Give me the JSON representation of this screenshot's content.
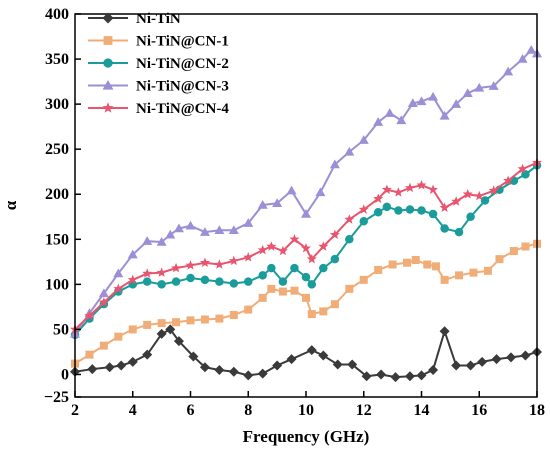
{
  "chart_data": {
    "type": "line",
    "xlabel": "Frequency (GHz)",
    "ylabel": "α",
    "xlim": [
      2,
      18
    ],
    "ylim": [
      -25,
      400
    ],
    "xticks": [
      2,
      4,
      6,
      8,
      10,
      12,
      14,
      16,
      18
    ],
    "yticks": [
      -25,
      0,
      50,
      100,
      150,
      200,
      250,
      300,
      350,
      400
    ],
    "legend_position": "top-left",
    "grid": false,
    "series": [
      {
        "name": "Ni-TiN",
        "color": "#3a3a3a",
        "marker": "diamond",
        "points": [
          [
            2.0,
            3
          ],
          [
            2.6,
            6
          ],
          [
            3.2,
            8
          ],
          [
            3.6,
            10
          ],
          [
            4.0,
            14
          ],
          [
            4.5,
            22
          ],
          [
            5.0,
            45
          ],
          [
            5.3,
            50
          ],
          [
            5.6,
            37
          ],
          [
            6.1,
            20
          ],
          [
            6.5,
            8
          ],
          [
            7.0,
            5
          ],
          [
            7.5,
            3
          ],
          [
            8.0,
            -1
          ],
          [
            8.5,
            1
          ],
          [
            9.0,
            10
          ],
          [
            9.5,
            17
          ],
          [
            10.2,
            27
          ],
          [
            10.6,
            21
          ],
          [
            11.1,
            11
          ],
          [
            11.6,
            11
          ],
          [
            12.1,
            -2
          ],
          [
            12.6,
            0
          ],
          [
            13.1,
            -3
          ],
          [
            13.6,
            -2
          ],
          [
            14.0,
            -1
          ],
          [
            14.4,
            5
          ],
          [
            14.8,
            48
          ],
          [
            15.2,
            10
          ],
          [
            15.7,
            10
          ],
          [
            16.1,
            14
          ],
          [
            16.6,
            17
          ],
          [
            17.1,
            19
          ],
          [
            17.6,
            21
          ],
          [
            18.0,
            25
          ]
        ]
      },
      {
        "name": "Ni-TiN@CN-1",
        "color": "#f0ad78",
        "marker": "square",
        "points": [
          [
            2.0,
            12
          ],
          [
            2.5,
            22
          ],
          [
            3.0,
            32
          ],
          [
            3.5,
            42
          ],
          [
            4.0,
            50
          ],
          [
            4.5,
            55
          ],
          [
            5.0,
            57
          ],
          [
            5.5,
            58
          ],
          [
            6.0,
            60
          ],
          [
            6.5,
            61
          ],
          [
            7.0,
            62
          ],
          [
            7.5,
            66
          ],
          [
            8.0,
            72
          ],
          [
            8.5,
            85
          ],
          [
            8.8,
            95
          ],
          [
            9.2,
            92
          ],
          [
            9.6,
            93
          ],
          [
            10.0,
            85
          ],
          [
            10.2,
            67
          ],
          [
            10.6,
            70
          ],
          [
            11.0,
            78
          ],
          [
            11.5,
            95
          ],
          [
            12.0,
            105
          ],
          [
            12.5,
            116
          ],
          [
            13.0,
            122
          ],
          [
            13.5,
            124
          ],
          [
            13.8,
            127
          ],
          [
            14.2,
            122
          ],
          [
            14.5,
            120
          ],
          [
            14.8,
            105
          ],
          [
            15.3,
            110
          ],
          [
            15.8,
            113
          ],
          [
            16.3,
            115
          ],
          [
            16.7,
            128
          ],
          [
            17.2,
            137
          ],
          [
            17.6,
            142
          ],
          [
            18.0,
            145
          ]
        ]
      },
      {
        "name": "Ni-TiN@CN-2",
        "color": "#1a9c9a",
        "marker": "circle",
        "points": [
          [
            2.0,
            44
          ],
          [
            2.5,
            62
          ],
          [
            3.0,
            78
          ],
          [
            3.5,
            92
          ],
          [
            4.0,
            100
          ],
          [
            4.5,
            103
          ],
          [
            5.0,
            100
          ],
          [
            5.5,
            103
          ],
          [
            6.0,
            107
          ],
          [
            6.5,
            105
          ],
          [
            7.0,
            103
          ],
          [
            7.5,
            101
          ],
          [
            8.0,
            103
          ],
          [
            8.5,
            110
          ],
          [
            8.8,
            118
          ],
          [
            9.2,
            103
          ],
          [
            9.6,
            118
          ],
          [
            10.0,
            108
          ],
          [
            10.2,
            100
          ],
          [
            10.6,
            118
          ],
          [
            11.0,
            128
          ],
          [
            11.5,
            150
          ],
          [
            12.0,
            170
          ],
          [
            12.5,
            180
          ],
          [
            12.8,
            186
          ],
          [
            13.2,
            182
          ],
          [
            13.6,
            183
          ],
          [
            14.0,
            182
          ],
          [
            14.4,
            178
          ],
          [
            14.8,
            162
          ],
          [
            15.3,
            158
          ],
          [
            15.7,
            175
          ],
          [
            16.2,
            193
          ],
          [
            16.7,
            205
          ],
          [
            17.2,
            215
          ],
          [
            17.6,
            222
          ],
          [
            18.0,
            232
          ]
        ]
      },
      {
        "name": "Ni-TiN@CN-3",
        "color": "#9b8fd6",
        "marker": "triangle",
        "points": [
          [
            2.0,
            45
          ],
          [
            2.5,
            68
          ],
          [
            3.0,
            90
          ],
          [
            3.5,
            112
          ],
          [
            4.0,
            133
          ],
          [
            4.5,
            148
          ],
          [
            5.0,
            147
          ],
          [
            5.3,
            155
          ],
          [
            5.6,
            162
          ],
          [
            6.0,
            165
          ],
          [
            6.5,
            158
          ],
          [
            7.0,
            160
          ],
          [
            7.5,
            160
          ],
          [
            8.0,
            168
          ],
          [
            8.5,
            188
          ],
          [
            9.0,
            190
          ],
          [
            9.5,
            204
          ],
          [
            10.0,
            178
          ],
          [
            10.5,
            202
          ],
          [
            11.0,
            233
          ],
          [
            11.5,
            247
          ],
          [
            12.0,
            260
          ],
          [
            12.5,
            280
          ],
          [
            12.9,
            290
          ],
          [
            13.3,
            282
          ],
          [
            13.7,
            301
          ],
          [
            14.0,
            303
          ],
          [
            14.4,
            308
          ],
          [
            14.8,
            287
          ],
          [
            15.2,
            300
          ],
          [
            15.6,
            312
          ],
          [
            16.0,
            318
          ],
          [
            16.5,
            320
          ],
          [
            17.0,
            336
          ],
          [
            17.5,
            350
          ],
          [
            17.8,
            360
          ],
          [
            18.0,
            356
          ]
        ]
      },
      {
        "name": "Ni-TiN@CN-4",
        "color": "#e8556e",
        "marker": "star",
        "points": [
          [
            2.0,
            50
          ],
          [
            2.5,
            65
          ],
          [
            3.0,
            80
          ],
          [
            3.5,
            95
          ],
          [
            4.0,
            105
          ],
          [
            4.5,
            112
          ],
          [
            5.0,
            113
          ],
          [
            5.5,
            118
          ],
          [
            6.0,
            121
          ],
          [
            6.5,
            124
          ],
          [
            7.0,
            122
          ],
          [
            7.5,
            126
          ],
          [
            8.0,
            130
          ],
          [
            8.5,
            138
          ],
          [
            8.8,
            142
          ],
          [
            9.2,
            137
          ],
          [
            9.6,
            150
          ],
          [
            10.0,
            140
          ],
          [
            10.2,
            128
          ],
          [
            10.6,
            142
          ],
          [
            11.0,
            155
          ],
          [
            11.5,
            172
          ],
          [
            12.0,
            183
          ],
          [
            12.5,
            195
          ],
          [
            12.8,
            205
          ],
          [
            13.2,
            202
          ],
          [
            13.6,
            207
          ],
          [
            14.0,
            210
          ],
          [
            14.4,
            205
          ],
          [
            14.8,
            185
          ],
          [
            15.2,
            192
          ],
          [
            15.6,
            200
          ],
          [
            16.0,
            198
          ],
          [
            16.5,
            204
          ],
          [
            17.0,
            215
          ],
          [
            17.5,
            228
          ],
          [
            18.0,
            235
          ]
        ]
      }
    ]
  }
}
